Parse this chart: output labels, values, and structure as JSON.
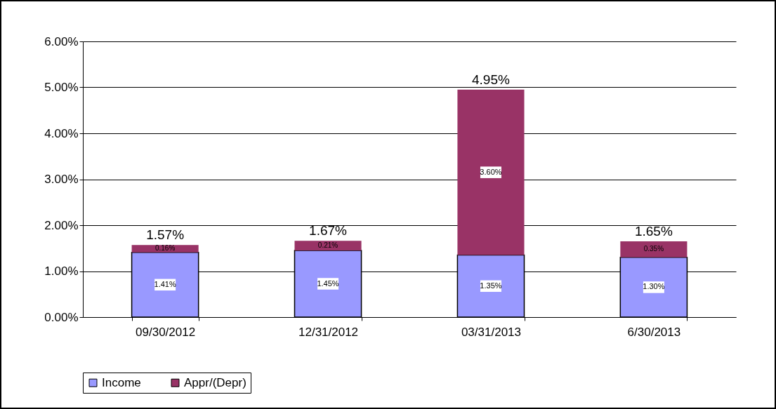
{
  "chart_data": {
    "type": "bar",
    "stacked": true,
    "categories": [
      "09/30/2012",
      "12/31/2012",
      "03/31/2013",
      "6/30/2013"
    ],
    "series": [
      {
        "name": "Income",
        "color": "#9999ff",
        "values": [
          1.41,
          1.45,
          1.35,
          1.3
        ],
        "value_labels": [
          "1.41%",
          "1.45%",
          "1.35%",
          "1.30%"
        ]
      },
      {
        "name": "Appr/(Depr)",
        "color": "#993366",
        "values": [
          0.16,
          0.21,
          3.6,
          0.35
        ],
        "value_labels": [
          "0.16%",
          "0.21%",
          "3.60%",
          "0.35%"
        ]
      }
    ],
    "totals": [
      "1.57%",
      "1.67%",
      "4.95%",
      "1.65%"
    ],
    "ylim": [
      0,
      6
    ],
    "yticks": [
      {
        "value": 0,
        "label": "0.00%"
      },
      {
        "value": 1,
        "label": "1.00%"
      },
      {
        "value": 2,
        "label": "2.00%"
      },
      {
        "value": 3,
        "label": "3.00%"
      },
      {
        "value": 4,
        "label": "4.00%"
      },
      {
        "value": 5,
        "label": "5.00%"
      },
      {
        "value": 6,
        "label": "6.00%"
      }
    ],
    "grid": "y",
    "legend": "bottom"
  }
}
